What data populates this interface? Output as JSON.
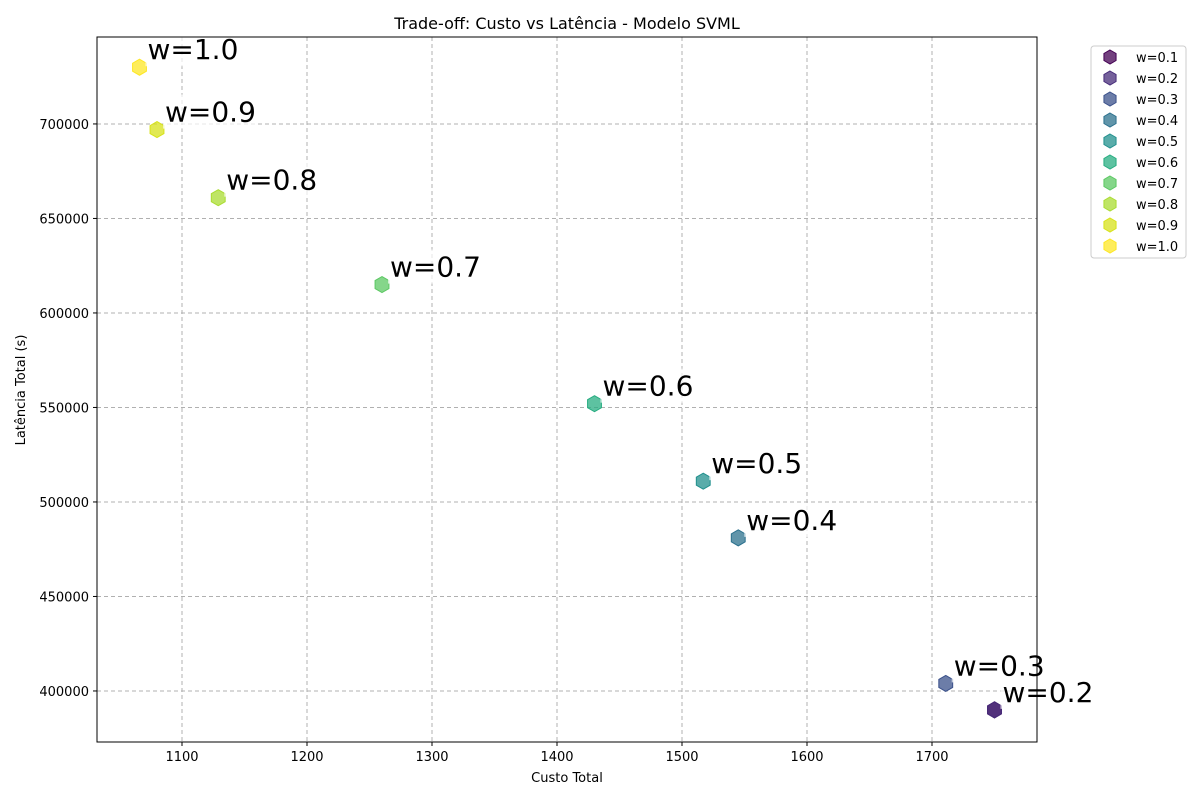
{
  "chart_data": {
    "type": "scatter",
    "title": "Trade-off: Custo vs Latência - Modelo SVML",
    "xlabel": "Custo Total",
    "ylabel": "Latência Total (s)",
    "xlim": [
      1032,
      1784
    ],
    "ylim": [
      373000,
      746000
    ],
    "xticks": [
      1100,
      1200,
      1300,
      1400,
      1500,
      1600,
      1700
    ],
    "yticks": [
      400000,
      450000,
      500000,
      550000,
      600000,
      650000,
      700000
    ],
    "grid": true,
    "legend_position": "outside-top-right",
    "marker": "hexagon",
    "series": [
      {
        "name": "w=0.1",
        "color": "#440154",
        "x": 1750,
        "y": 390000,
        "annotation": ""
      },
      {
        "name": "w=0.2",
        "color": "#472c7a",
        "x": 1750,
        "y": 390000,
        "annotation": "w=0.2"
      },
      {
        "name": "w=0.3",
        "color": "#3b518b",
        "x": 1711,
        "y": 404000,
        "annotation": "w=0.3"
      },
      {
        "name": "w=0.4",
        "color": "#2c718e",
        "x": 1545,
        "y": 481000,
        "annotation": "w=0.4"
      },
      {
        "name": "w=0.5",
        "color": "#21908d",
        "x": 1517,
        "y": 511000,
        "annotation": "w=0.5"
      },
      {
        "name": "w=0.6",
        "color": "#27ad81",
        "x": 1430,
        "y": 552000,
        "annotation": "w=0.6"
      },
      {
        "name": "w=0.7",
        "color": "#5cc863",
        "x": 1260,
        "y": 615000,
        "annotation": "w=0.7"
      },
      {
        "name": "w=0.8",
        "color": "#aadc32",
        "x": 1129,
        "y": 661000,
        "annotation": "w=0.8"
      },
      {
        "name": "w=0.9",
        "color": "#d7e219",
        "x": 1080,
        "y": 697000,
        "annotation": "w=0.9"
      },
      {
        "name": "w=1.0",
        "color": "#fde725",
        "x": 1066,
        "y": 730000,
        "annotation": "w=1.0"
      }
    ]
  }
}
